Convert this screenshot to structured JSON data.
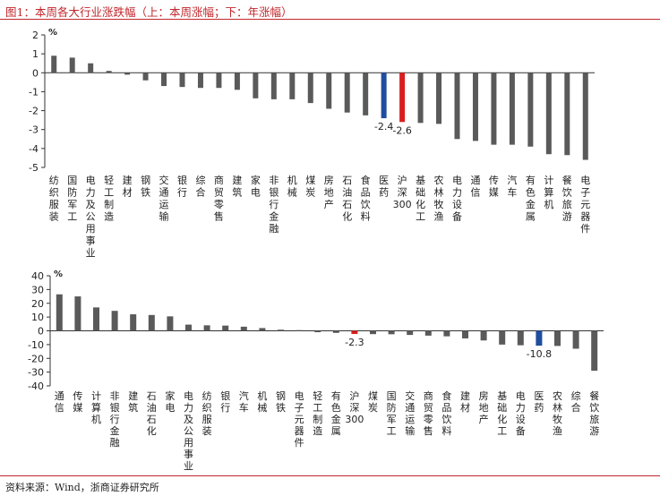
{
  "figure": {
    "title": "图1：本周各大行业涨跌幅（上：本周涨幅；下：年涨幅）",
    "source": "资料来源：Wind，浙商证券研究所"
  },
  "colors": {
    "bar": "#5a5a5a",
    "highlight_blue": "#1f4e9e",
    "highlight_red": "#d81e1e",
    "accent": "#c1272d"
  },
  "chart_data": [
    {
      "type": "bar",
      "unit_label": "%",
      "ylim": [
        -5,
        2
      ],
      "yticks": [
        2,
        1,
        0,
        -1,
        -2,
        -3,
        -4,
        -5
      ],
      "categories": [
        "纺织服装",
        "国防军工",
        "电力及公用事业",
        "轻工制造",
        "建材",
        "钢铁",
        "交通运输",
        "银行",
        "综合",
        "商贸零售",
        "建筑",
        "家电",
        "非银行金融",
        "机械",
        "煤炭",
        "房地产",
        "石油石化",
        "食品饮料",
        "医药",
        "沪深300",
        "基础化工",
        "农林牧渔",
        "电力设备",
        "通信",
        "传媒",
        "汽车",
        "有色金属",
        "计算机",
        "餐饮旅游",
        "电子元器件"
      ],
      "values": [
        0.9,
        0.8,
        0.5,
        0.1,
        -0.1,
        -0.4,
        -0.7,
        -0.75,
        -0.8,
        -0.8,
        -0.9,
        -1.35,
        -1.4,
        -1.4,
        -1.6,
        -1.9,
        -2.1,
        -2.25,
        -2.4,
        -2.6,
        -2.65,
        -2.7,
        -3.5,
        -3.6,
        -3.8,
        -3.8,
        -3.9,
        -4.3,
        -4.35,
        -4.6
      ],
      "highlights": {
        "医药": "blue",
        "沪深300": "red"
      },
      "data_labels": [
        {
          "category": "医药",
          "text": "-2.4"
        },
        {
          "category": "沪深300",
          "text": "-2.6"
        }
      ]
    },
    {
      "type": "bar",
      "unit_label": "%",
      "ylim": [
        -40,
        40
      ],
      "yticks": [
        40,
        30,
        20,
        10,
        0,
        -10,
        -20,
        -30,
        -40
      ],
      "categories": [
        "通信",
        "传媒",
        "计算机",
        "非银行金融",
        "建筑",
        "石油石化",
        "家电",
        "电力及公用事业",
        "纺织服装",
        "银行",
        "汽车",
        "机械",
        "钢铁",
        "电子元器件",
        "轻工制造",
        "有色金属",
        "沪深300",
        "煤炭",
        "国防军工",
        "交通运输",
        "商贸零售",
        "食品饮料",
        "建材",
        "房地产",
        "基础化工",
        "电力设备",
        "医药",
        "农林牧渔",
        "综合",
        "餐饮旅游"
      ],
      "values": [
        26.5,
        25,
        17,
        14.5,
        12,
        11.5,
        10.5,
        4.5,
        4,
        3.8,
        3,
        2,
        0.8,
        0.5,
        -1,
        -1.5,
        -2.3,
        -2.4,
        -2.5,
        -3,
        -3.5,
        -4,
        -5.5,
        -7,
        -10,
        -10.5,
        -10.8,
        -11,
        -13,
        -29
      ],
      "highlights": {
        "沪深300": "red",
        "医药": "blue"
      },
      "data_labels": [
        {
          "category": "沪深300",
          "text": "-2.3"
        },
        {
          "category": "医药",
          "text": "-10.8"
        }
      ]
    }
  ]
}
